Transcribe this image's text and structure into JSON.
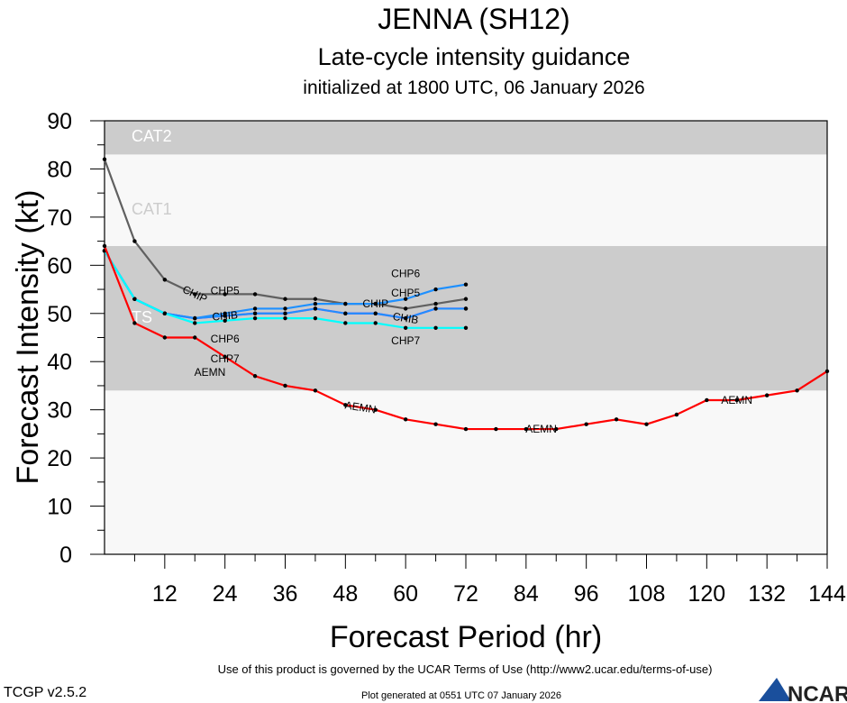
{
  "header": {
    "title": "JENNA (SH12)",
    "subtitle": "Late-cycle intensity guidance",
    "init": "initialized at 1800 UTC, 06 January 2026"
  },
  "footer": {
    "terms": "Use of this product is governed by the UCAR Terms of Use (http://www2.ucar.edu/terms-of-use)",
    "version": "TCGP v2.5.2",
    "generated": "Plot generated at 0551 UTC   07 January 2026",
    "logo": "NCAR"
  },
  "chart_data": {
    "type": "line",
    "xlabel": "Forecast Period (hr)",
    "ylabel": "Forecast Intensity (kt)",
    "xlim": [
      0,
      144
    ],
    "ylim": [
      0,
      90
    ],
    "xticks": [
      12,
      24,
      36,
      48,
      60,
      72,
      84,
      96,
      108,
      120,
      132,
      144
    ],
    "yticks": [
      0,
      10,
      20,
      30,
      40,
      50,
      60,
      70,
      80,
      90
    ],
    "bands": [
      {
        "label": "TS",
        "from": 34,
        "to": 64,
        "color": "#cccccc"
      },
      {
        "label": "CAT1",
        "from": 64,
        "to": 83,
        "color": "#f8f8f8"
      },
      {
        "label": "CAT2",
        "from": 83,
        "to": 96,
        "color": "#cccccc"
      }
    ],
    "series": [
      {
        "name": "CHIP",
        "color": "#606060",
        "x": [
          0,
          6,
          12,
          18,
          24,
          30,
          36,
          42,
          48,
          54,
          60,
          66,
          72
        ],
        "y": [
          82,
          65,
          57,
          54,
          54,
          54,
          53,
          53,
          52,
          52,
          51,
          52,
          53
        ]
      },
      {
        "name": "CHIB",
        "color": "#ff00ff",
        "x": [
          0,
          6,
          12,
          18,
          24,
          30,
          36,
          42,
          48,
          54,
          60,
          66,
          72
        ],
        "y": [
          63,
          53,
          50,
          49,
          49.5,
          50,
          50,
          51,
          50,
          50,
          49,
          51,
          51
        ]
      },
      {
        "name": "CHP5",
        "color": "#1e90ff",
        "x": [
          0,
          6,
          12,
          18,
          24,
          30,
          36,
          42,
          48,
          54,
          60,
          66,
          72
        ],
        "y": [
          63,
          53,
          50,
          49,
          49.5,
          50,
          50,
          51,
          50,
          50,
          49,
          51,
          51
        ]
      },
      {
        "name": "CHP6",
        "color": "#1e90ff",
        "x": [
          0,
          6,
          12,
          18,
          24,
          30,
          36,
          42,
          48,
          54,
          60,
          66,
          72
        ],
        "y": [
          63,
          53,
          50,
          49,
          50,
          51,
          51,
          52,
          52,
          52,
          53,
          55,
          56
        ]
      },
      {
        "name": "CHP7",
        "color": "#00ffff",
        "x": [
          0,
          6,
          12,
          18,
          24,
          30,
          36,
          42,
          48,
          54,
          60,
          66,
          72
        ],
        "y": [
          63,
          53,
          50,
          48,
          48.5,
          49,
          49,
          49,
          48,
          48,
          47,
          47,
          47
        ]
      },
      {
        "name": "AEMN",
        "color": "#ff0000",
        "x": [
          0,
          6,
          12,
          18,
          24,
          30,
          36,
          42,
          48,
          54,
          60,
          66,
          72,
          78,
          84,
          90,
          96,
          102,
          108,
          114,
          120,
          126,
          132,
          138,
          144
        ],
        "y": [
          64,
          48,
          45,
          45,
          41,
          37,
          35,
          34,
          31,
          30,
          28,
          27,
          26,
          26,
          26,
          26,
          27,
          28,
          27,
          29,
          32,
          32,
          33,
          34,
          38
        ]
      }
    ],
    "labels": [
      {
        "series": "CHIP",
        "x": [
          18,
          54
        ]
      },
      {
        "series": "CHIB",
        "x": [
          24,
          60
        ]
      },
      {
        "series": "CHP5",
        "x": [
          24,
          60
        ]
      },
      {
        "series": "CHP6",
        "x": [
          24,
          60
        ]
      },
      {
        "series": "CHP7",
        "x": [
          24,
          60
        ]
      },
      {
        "series": "AEMN",
        "x": [
          21,
          51,
          87,
          126
        ]
      }
    ]
  }
}
